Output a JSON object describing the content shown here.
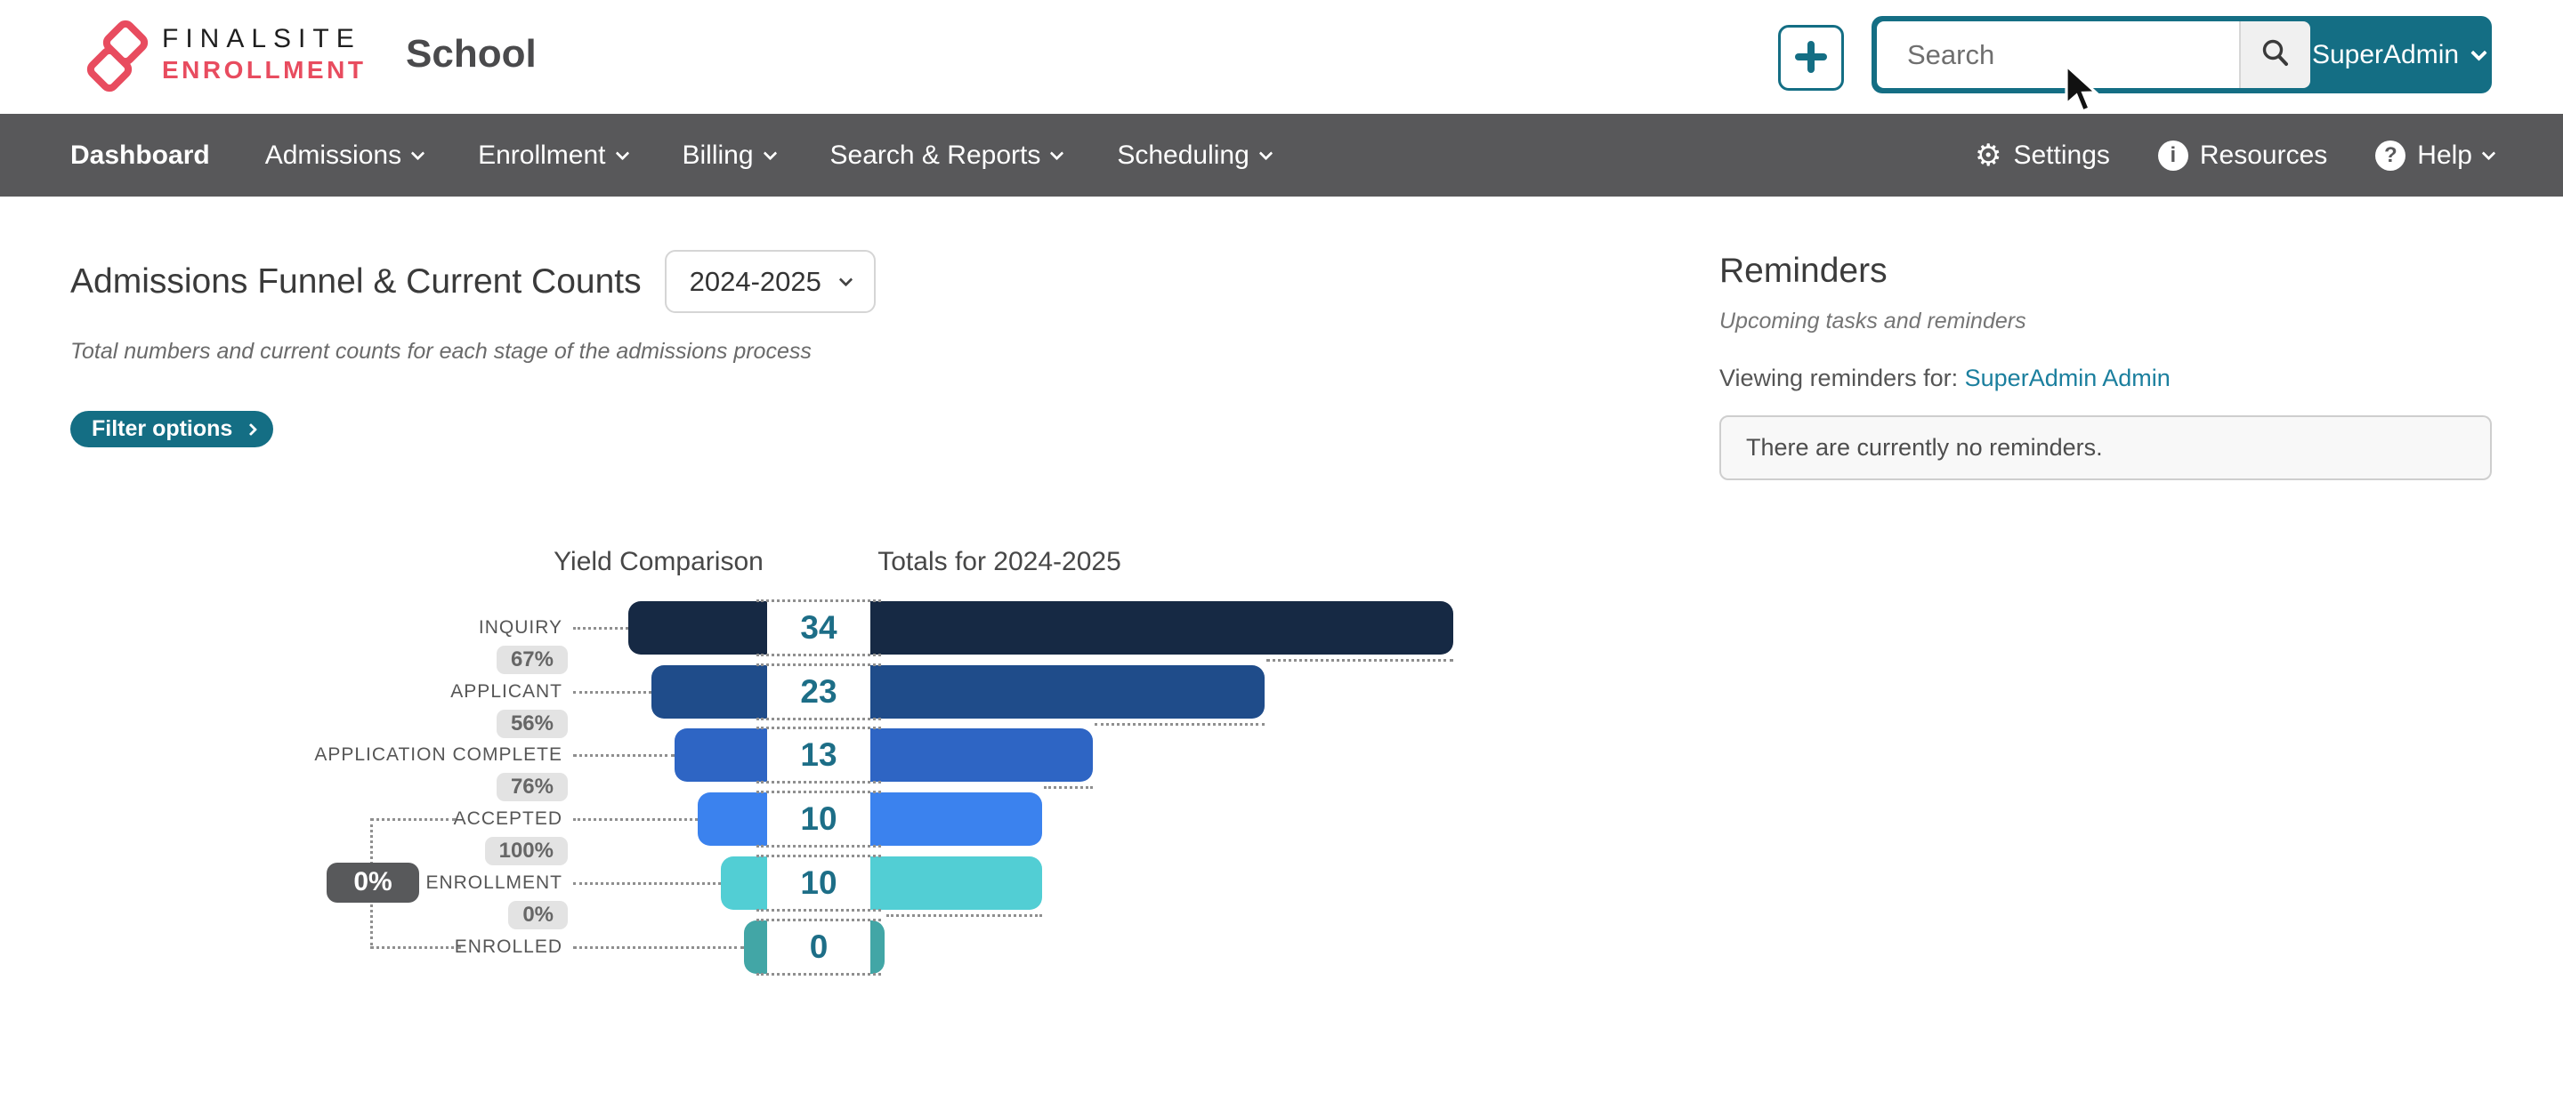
{
  "brand": {
    "line1": "FINALSITE",
    "line2": "ENROLLMENT",
    "site_name": "School"
  },
  "header": {
    "search_placeholder": "Search",
    "user_menu": "SuperAdmin"
  },
  "nav": {
    "items": [
      {
        "label": "Dashboard",
        "active": true,
        "dropdown": false
      },
      {
        "label": "Admissions",
        "active": false,
        "dropdown": true
      },
      {
        "label": "Enrollment",
        "active": false,
        "dropdown": true
      },
      {
        "label": "Billing",
        "active": false,
        "dropdown": true
      },
      {
        "label": "Search & Reports",
        "active": false,
        "dropdown": true
      },
      {
        "label": "Scheduling",
        "active": false,
        "dropdown": true
      }
    ],
    "right": [
      {
        "label": "Settings",
        "icon": "gear-icon",
        "icon_glyph": "⚙"
      },
      {
        "label": "Resources",
        "icon": "info-circle-icon",
        "icon_glyph": "i"
      },
      {
        "label": "Help",
        "icon": "question-circle-icon",
        "icon_glyph": "?",
        "dropdown": true
      }
    ]
  },
  "main": {
    "title": "Admissions Funnel & Current Counts",
    "year_selector": "2024-2025",
    "subtitle": "Total numbers and current counts for each stage of the admissions process",
    "filter_button": "Filter options"
  },
  "chart_data": {
    "type": "funnel",
    "title": "Admissions Funnel & Current Counts",
    "left_header": "Yield Comparison",
    "right_header": "Totals for 2024-2025",
    "max_count": 34,
    "stages": [
      {
        "label": "INQUIRY",
        "count": 34,
        "color": "#162944",
        "conversion_to_next": "67%"
      },
      {
        "label": "APPLICANT",
        "count": 23,
        "color": "#1f4c8a",
        "conversion_to_next": "56%"
      },
      {
        "label": "APPLICATION COMPLETE",
        "count": 13,
        "color": "#2e65c4",
        "conversion_to_next": "76%"
      },
      {
        "label": "ACCEPTED",
        "count": 10,
        "color": "#3b82ee",
        "conversion_to_next": "100%"
      },
      {
        "label": "ENROLLMENT",
        "count": 10,
        "color": "#52ced4",
        "conversion_to_next": "0%"
      },
      {
        "label": "ENROLLED",
        "count": 0,
        "color": "#42a6a6",
        "conversion_to_next": null
      }
    ],
    "side_annotation": {
      "from": "ACCEPTED",
      "to": "ENROLLED",
      "value": "0%"
    }
  },
  "reminders": {
    "title": "Reminders",
    "subtitle": "Upcoming tasks and reminders",
    "viewing_label": "Viewing reminders for:",
    "viewing_user": "SuperAdmin Admin",
    "empty_message": "There are currently no reminders."
  },
  "colors": {
    "accent_teal": "#146e84",
    "logo_red": "#e84c5f",
    "nav_background": "#58585a",
    "count_text": "#1d6e87",
    "link": "#1b7f9e"
  }
}
